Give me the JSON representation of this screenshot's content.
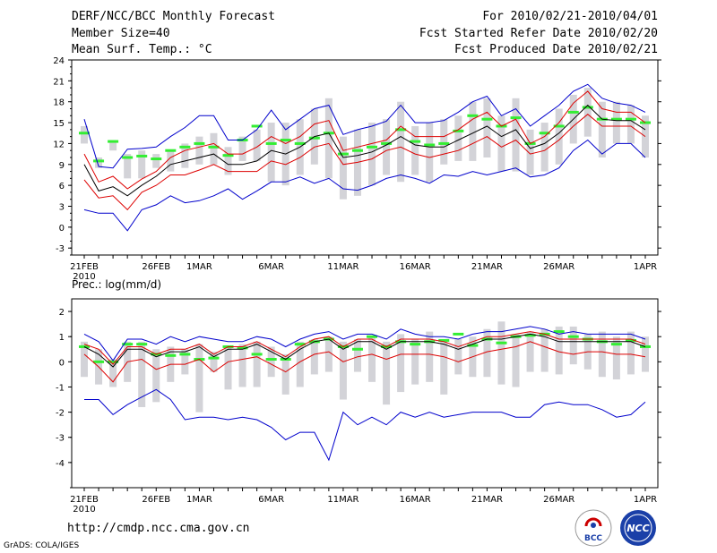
{
  "header": {
    "line1_left": "DERF/NCC/BCC Monthly Forecast",
    "line2_left": "Member Size=40",
    "line3_left": "Mean Surf. Temp.: °C",
    "line1_right": "For 2010/02/21-2010/04/01",
    "line2_right": "Fcst Started Refer Date 2010/02/20",
    "line3_right": "Fcst Produced Date 2010/02/21"
  },
  "footer": {
    "url": "http://cmdp.ncc.cma.gov.cn",
    "grads": "GrADS: COLA/IGES",
    "logo_bcc_text": "BCC",
    "logo_ncc_text": "NCC"
  },
  "colors": {
    "envelope": "#0000cc",
    "spread": "#dd0000",
    "mean": "#000000",
    "box": "#d3d3d8",
    "median": "#33ee33"
  },
  "chart_data": [
    {
      "type": "line",
      "title": "Mean Surf. Temp.: °C",
      "x_ticks": [
        "21FEB",
        "26FEB",
        "1MAR",
        "6MAR",
        "11MAR",
        "16MAR",
        "21MAR",
        "26MAR",
        "1APR"
      ],
      "x_tick_days": [
        0,
        5,
        8,
        13,
        18,
        23,
        28,
        33,
        39
      ],
      "x_sublabel": "2010",
      "ylim": [
        -4,
        24
      ],
      "y_ticks": [
        "-3",
        "0",
        "3",
        "6",
        "9",
        "12",
        "15",
        "18",
        "21",
        "24"
      ],
      "y_tick_values": [
        -3,
        0,
        3,
        6,
        9,
        12,
        15,
        18,
        21,
        24
      ],
      "series": [
        {
          "name": "max",
          "values": [
            15.5,
            8.7,
            8.5,
            11.2,
            11.3,
            11.5,
            13,
            14.3,
            16,
            16,
            12.5,
            12.5,
            14,
            16.8,
            14,
            15.5,
            17,
            17.5,
            13.3,
            14,
            14.5,
            15.2,
            17.5,
            15,
            15,
            15.3,
            16.5,
            18,
            18.8,
            16,
            17,
            14.5,
            16,
            17.5,
            19.5,
            20.5,
            18.5,
            17.8,
            17.5,
            16.5
          ]
        },
        {
          "name": "upper",
          "values": [
            10.5,
            6.5,
            7.3,
            5.5,
            6.9,
            8,
            10,
            11,
            11.5,
            12,
            10.5,
            10.5,
            11.5,
            13,
            12,
            13,
            14.8,
            15.3,
            11,
            11.5,
            12,
            12.5,
            14.5,
            13,
            13,
            13,
            14,
            15.5,
            16.5,
            14.5,
            15.5,
            12,
            13,
            15,
            17.8,
            19.5,
            17,
            16.5,
            16.5,
            15
          ]
        },
        {
          "name": "mean",
          "values": [
            9,
            5.2,
            5.8,
            4.5,
            6,
            7.3,
            9,
            9.5,
            10,
            10.5,
            9,
            9,
            9.5,
            11,
            10.5,
            11.5,
            13,
            13.5,
            10,
            10.3,
            10.8,
            11.8,
            13,
            11.8,
            11.5,
            11.5,
            12.5,
            13.5,
            14.5,
            13,
            14,
            11.3,
            12,
            13.5,
            15.5,
            17.5,
            15.5,
            15.3,
            15.3,
            14
          ]
        },
        {
          "name": "lower",
          "values": [
            6.8,
            4.2,
            4.5,
            2.5,
            5,
            6,
            7.5,
            7.5,
            8.2,
            9,
            8,
            8,
            8,
            9.5,
            9,
            10,
            11.5,
            12,
            9,
            9.3,
            9.8,
            11,
            11.5,
            10.5,
            10,
            10.5,
            11,
            12,
            13,
            11.5,
            12.5,
            10.5,
            11,
            12.5,
            14.5,
            16.2,
            14.5,
            14.5,
            14.5,
            13
          ]
        },
        {
          "name": "min",
          "values": [
            2.5,
            2,
            2,
            -0.5,
            2.5,
            3.2,
            4.5,
            3.5,
            3.8,
            4.5,
            5.5,
            4,
            5.2,
            6.5,
            6.5,
            7.2,
            6.3,
            7,
            5.5,
            5.3,
            6,
            7,
            7.5,
            7,
            6.3,
            7.5,
            7.3,
            8,
            7.5,
            8,
            8.5,
            7.2,
            7.5,
            8.5,
            11,
            12.5,
            10.5,
            12,
            12,
            10
          ]
        },
        {
          "name": "box_top",
          "values": [
            14.5,
            10,
            12.5,
            10.5,
            11,
            10.5,
            11,
            12,
            13,
            13.5,
            11.5,
            13,
            14,
            15,
            15,
            15.5,
            17,
            18.5,
            13,
            14,
            15,
            15.5,
            18,
            14.5,
            15,
            15.5,
            16,
            18,
            18.5,
            16,
            18.5,
            14,
            15,
            17,
            19,
            20,
            18,
            18,
            17.5,
            16
          ]
        },
        {
          "name": "box_bottom",
          "values": [
            12,
            8.5,
            11,
            7,
            7,
            8.5,
            8,
            8.5,
            9,
            9,
            7.5,
            9.5,
            9.5,
            6.5,
            6,
            7.5,
            9,
            7,
            4,
            4.5,
            6,
            7.5,
            6.5,
            7.5,
            6.5,
            9,
            9.5,
            9.5,
            10,
            8,
            8,
            7.5,
            8,
            9,
            12,
            13,
            10,
            12,
            12,
            10
          ]
        },
        {
          "name": "median",
          "values": [
            13.5,
            9.5,
            12.3,
            10,
            10.2,
            9.8,
            11,
            11.5,
            12,
            11.5,
            10.3,
            12.5,
            14.5,
            12,
            12.5,
            12,
            12.8,
            13.5,
            10.5,
            11,
            11.5,
            12,
            14,
            12.3,
            11.8,
            12,
            13.8,
            16,
            15.5,
            14.5,
            15.7,
            12,
            13.5,
            14.5,
            16.5,
            17.2,
            15.5,
            15.5,
            15.5,
            15
          ]
        }
      ]
    },
    {
      "type": "line",
      "title": "Prec.: log(mm/d)",
      "x_ticks": [
        "21FEB",
        "26FEB",
        "1MAR",
        "6MAR",
        "11MAR",
        "16MAR",
        "21MAR",
        "26MAR",
        "1APR"
      ],
      "x_tick_days": [
        0,
        5,
        8,
        13,
        18,
        23,
        28,
        33,
        39
      ],
      "x_sublabel": "2010",
      "ylim": [
        -5,
        2.5
      ],
      "y_ticks": [
        "-4",
        "-3",
        "-2",
        "-1",
        "0",
        "1",
        "2"
      ],
      "y_tick_values": [
        -4,
        -3,
        -2,
        -1,
        0,
        1,
        2
      ],
      "series": [
        {
          "name": "max",
          "values": [
            1.1,
            0.8,
            0.05,
            0.9,
            0.9,
            0.7,
            1,
            0.8,
            1,
            0.9,
            0.8,
            0.8,
            1,
            0.9,
            0.6,
            0.9,
            1.1,
            1.2,
            0.9,
            1.1,
            1.1,
            0.9,
            1.3,
            1.1,
            1,
            1,
            0.9,
            1.1,
            1.2,
            1.2,
            1.3,
            1.4,
            1.3,
            1.1,
            1.2,
            1.1,
            1.1,
            1.1,
            1.1,
            0.9
          ]
        },
        {
          "name": "upper",
          "values": [
            0.7,
            0.5,
            -0.1,
            0.6,
            0.6,
            0.3,
            0.5,
            0.5,
            0.7,
            0.3,
            0.6,
            0.6,
            0.8,
            0.5,
            0.2,
            0.6,
            0.9,
            1,
            0.6,
            0.9,
            0.9,
            0.6,
            0.9,
            0.9,
            0.9,
            0.8,
            0.6,
            0.8,
            1,
            1,
            1.1,
            1.2,
            1.1,
            0.9,
            0.9,
            0.9,
            0.9,
            0.9,
            0.9,
            0.7
          ]
        },
        {
          "name": "mean",
          "values": [
            0.6,
            0.3,
            -0.2,
            0.5,
            0.5,
            0.2,
            0.4,
            0.4,
            0.6,
            0.2,
            0.5,
            0.5,
            0.7,
            0.4,
            0.1,
            0.5,
            0.8,
            0.9,
            0.5,
            0.8,
            0.8,
            0.5,
            0.8,
            0.8,
            0.8,
            0.7,
            0.5,
            0.7,
            0.9,
            0.9,
            1,
            1.1,
            1,
            0.8,
            0.8,
            0.8,
            0.8,
            0.8,
            0.8,
            0.6
          ]
        },
        {
          "name": "lower",
          "values": [
            0.3,
            -0.2,
            -0.8,
            0,
            0.1,
            -0.3,
            -0.1,
            -0.1,
            0.1,
            -0.4,
            0,
            0.1,
            0.2,
            -0.1,
            -0.4,
            0,
            0.3,
            0.4,
            0,
            0.2,
            0.3,
            0.1,
            0.3,
            0.3,
            0.3,
            0.2,
            0,
            0.2,
            0.4,
            0.5,
            0.6,
            0.8,
            0.6,
            0.4,
            0.3,
            0.4,
            0.4,
            0.3,
            0.3,
            0.2
          ]
        },
        {
          "name": "min",
          "values": [
            -1.5,
            -1.5,
            -2.1,
            -1.7,
            -1.4,
            -1.1,
            -1.5,
            -2.3,
            -2.2,
            -2.2,
            -2.3,
            -2.2,
            -2.3,
            -2.6,
            -3.1,
            -2.8,
            -2.8,
            -3.9,
            -2,
            -2.5,
            -2.2,
            -2.5,
            -2,
            -2.2,
            -2,
            -2.2,
            -2.1,
            -2,
            -2,
            -2,
            -2.2,
            -2.2,
            -1.7,
            -1.6,
            -1.7,
            -1.7,
            -1.9,
            -2.2,
            -2.1,
            -1.6
          ]
        },
        {
          "name": "box_top",
          "values": [
            0.8,
            0.5,
            0.1,
            0.8,
            0.8,
            0.5,
            0.6,
            0.5,
            0.7,
            0.4,
            0.6,
            0.7,
            0.8,
            0.6,
            0.3,
            0.8,
            0.9,
            1,
            0.8,
            0.9,
            1,
            0.8,
            1.1,
            0.9,
            1.2,
            0.8,
            0.9,
            1,
            1.3,
            1.6,
            1.1,
            1.2,
            1.3,
            1.4,
            1.4,
            1.1,
            1.2,
            1,
            1.2,
            1
          ]
        },
        {
          "name": "box_bottom",
          "values": [
            -0.6,
            -0.9,
            -1,
            -0.8,
            -1.8,
            -1.6,
            -0.8,
            -0.5,
            -2,
            -0.4,
            -1.1,
            -1,
            -1,
            -0.6,
            -1.3,
            -1,
            -0.5,
            -0.4,
            -1.5,
            -0.4,
            -0.8,
            -1.7,
            -1.2,
            -0.9,
            -0.8,
            -1.3,
            -0.5,
            -0.6,
            -0.6,
            -0.9,
            -1,
            -0.4,
            -0.4,
            -0.5,
            -0.1,
            -0.3,
            -0.6,
            -0.7,
            -0.5,
            -0.4
          ]
        },
        {
          "name": "median",
          "values": [
            0.6,
            0,
            0,
            0.7,
            0.7,
            0.3,
            0.25,
            0.3,
            0.1,
            0.15,
            0.6,
            0.55,
            0.3,
            0.1,
            0.1,
            0.7,
            0.8,
            0.9,
            0.6,
            0.5,
            1,
            0.6,
            0.8,
            0.7,
            0.8,
            0.85,
            1.1,
            0.65,
            0.9,
            0.75,
            1,
            1.05,
            1.1,
            1.2,
            1,
            0.9,
            0.8,
            0.7,
            0.85,
            0.6
          ]
        }
      ]
    }
  ]
}
